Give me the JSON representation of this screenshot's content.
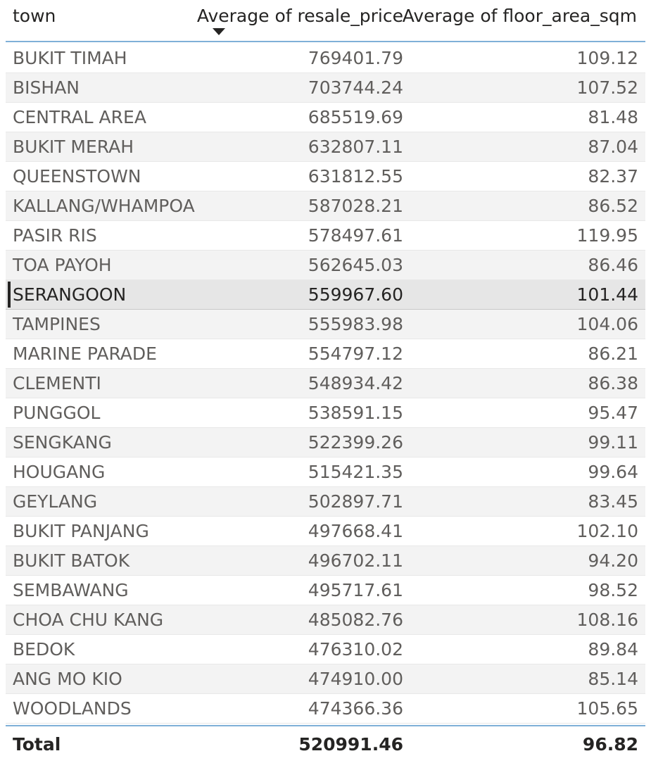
{
  "header": {
    "town": "town",
    "price": "Average of resale_price",
    "area": "Average of floor_area_sqm"
  },
  "rows": [
    {
      "town": "BUKIT TIMAH",
      "price": "769401.79",
      "area": "109.12"
    },
    {
      "town": "BISHAN",
      "price": "703744.24",
      "area": "107.52"
    },
    {
      "town": "CENTRAL AREA",
      "price": "685519.69",
      "area": "81.48"
    },
    {
      "town": "BUKIT MERAH",
      "price": "632807.11",
      "area": "87.04"
    },
    {
      "town": "QUEENSTOWN",
      "price": "631812.55",
      "area": "82.37"
    },
    {
      "town": "KALLANG/WHAMPOA",
      "price": "587028.21",
      "area": "86.52"
    },
    {
      "town": "PASIR RIS",
      "price": "578497.61",
      "area": "119.95"
    },
    {
      "town": "TOA PAYOH",
      "price": "562645.03",
      "area": "86.46"
    },
    {
      "town": "SERANGOON",
      "price": "559967.60",
      "area": "101.44"
    },
    {
      "town": "TAMPINES",
      "price": "555983.98",
      "area": "104.06"
    },
    {
      "town": "MARINE PARADE",
      "price": "554797.12",
      "area": "86.21"
    },
    {
      "town": "CLEMENTI",
      "price": "548934.42",
      "area": "86.38"
    },
    {
      "town": "PUNGGOL",
      "price": "538591.15",
      "area": "95.47"
    },
    {
      "town": "SENGKANG",
      "price": "522399.26",
      "area": "99.11"
    },
    {
      "town": "HOUGANG",
      "price": "515421.35",
      "area": "99.64"
    },
    {
      "town": "GEYLANG",
      "price": "502897.71",
      "area": "83.45"
    },
    {
      "town": "BUKIT PANJANG",
      "price": "497668.41",
      "area": "102.10"
    },
    {
      "town": "BUKIT BATOK",
      "price": "496702.11",
      "area": "94.20"
    },
    {
      "town": "SEMBAWANG",
      "price": "495717.61",
      "area": "98.52"
    },
    {
      "town": "CHOA CHU KANG",
      "price": "485082.76",
      "area": "108.16"
    },
    {
      "town": "BEDOK",
      "price": "476310.02",
      "area": "89.84"
    },
    {
      "town": "ANG MO KIO",
      "price": "474910.00",
      "area": "85.14"
    },
    {
      "town": "WOODLANDS",
      "price": "474366.36",
      "area": "105.65"
    }
  ],
  "selected_town": "SERANGOON",
  "total": {
    "label": "Total",
    "price": "520991.46",
    "area": "96.82"
  },
  "colors": {
    "header_rule": "#7fb0d8",
    "alt_row": "#f3f3f3",
    "selected_row": "#e6e6e6"
  },
  "icons": {
    "sort": "sort-descending-icon"
  }
}
